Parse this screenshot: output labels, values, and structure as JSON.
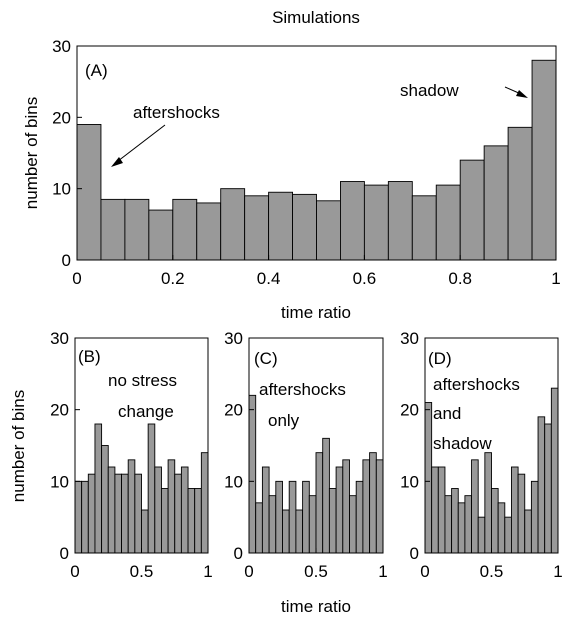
{
  "colors": {
    "bar": "#999999",
    "axis": "#000000",
    "background": "#ffffff"
  },
  "chart_data": [
    {
      "type": "bar",
      "title": "Simulations",
      "panel_label": "(A)",
      "xlabel": "time ratio",
      "ylabel": "number of bins",
      "xlim": [
        0,
        1
      ],
      "ylim": [
        0,
        30
      ],
      "xticks": [
        "0",
        "0.2",
        "0.4",
        "0.6",
        "0.8",
        "1"
      ],
      "yticks": [
        "0",
        "10",
        "20",
        "30"
      ],
      "bin_width": 0.05,
      "values": [
        19,
        8.5,
        8.5,
        7,
        8.5,
        8,
        10,
        9,
        9.5,
        9.2,
        8.3,
        11,
        10.5,
        11,
        9,
        10.5,
        14,
        16,
        18.6,
        28
      ],
      "annotations": [
        {
          "text": "aftershocks",
          "arrow_to": [
            0.06,
            14
          ]
        },
        {
          "text": "shadow",
          "arrow_to": [
            0.98,
            25.5
          ]
        }
      ]
    },
    {
      "type": "bar",
      "panel_label": "(B)",
      "annotation_lines": [
        "no stress",
        "change"
      ],
      "xlabel": "",
      "ylabel": "number of bins",
      "xlim": [
        0,
        1
      ],
      "ylim": [
        0,
        30
      ],
      "xticks": [
        "0",
        "0.5",
        "1"
      ],
      "yticks": [
        "0",
        "10",
        "20",
        "30"
      ],
      "bin_width": 0.05,
      "values": [
        10,
        10,
        11,
        18,
        15,
        12,
        11,
        11,
        13,
        11,
        6,
        18,
        12,
        9,
        13,
        11,
        12,
        9,
        9,
        14
      ]
    },
    {
      "type": "bar",
      "panel_label": "(C)",
      "annotation_lines": [
        "aftershocks",
        "only"
      ],
      "xlabel": "time ratio",
      "ylabel": "",
      "xlim": [
        0,
        1
      ],
      "ylim": [
        0,
        30
      ],
      "xticks": [
        "0",
        "0.5",
        "1"
      ],
      "yticks": [
        "0",
        "10",
        "20",
        "30"
      ],
      "bin_width": 0.05,
      "values": [
        22,
        7,
        12,
        8,
        10,
        6,
        10,
        6,
        10,
        8,
        14,
        16,
        9,
        12,
        13,
        8,
        10,
        13,
        14,
        13
      ]
    },
    {
      "type": "bar",
      "panel_label": "(D)",
      "annotation_lines": [
        "aftershocks",
        "and",
        "shadow"
      ],
      "xlabel": "",
      "ylabel": "",
      "xlim": [
        0,
        1
      ],
      "ylim": [
        0,
        30
      ],
      "xticks": [
        "0",
        "0.5",
        "1"
      ],
      "yticks": [
        "0",
        "10",
        "20",
        "30"
      ],
      "bin_width": 0.05,
      "values": [
        21,
        12,
        12,
        8,
        9,
        7,
        8,
        13,
        5,
        14,
        9,
        7,
        5,
        12,
        11,
        6,
        10,
        19,
        18,
        23
      ]
    }
  ]
}
